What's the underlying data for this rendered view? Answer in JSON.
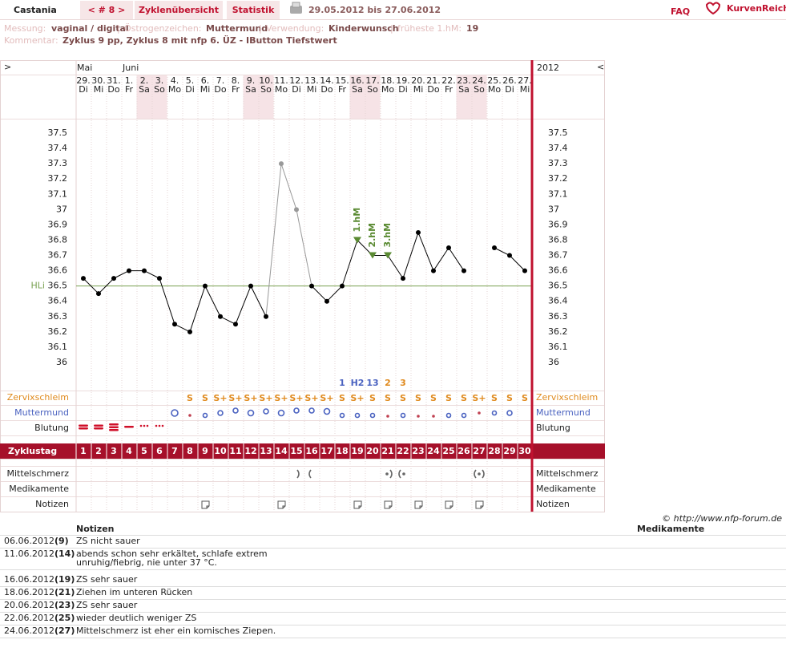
{
  "header": {
    "user": "Castania",
    "cycle_nav": "< # 8 >",
    "tabs": [
      "Zyklenübersicht",
      "Statistik"
    ],
    "date_range": "29.05.2012 bis 27.06.2012",
    "faq": "FAQ",
    "logo": "KurvenReich"
  },
  "info": {
    "separator": "|",
    "items": [
      {
        "label": "Messung:",
        "value": "vaginal / digital"
      },
      {
        "label": "Östrogenzeichen:",
        "value": "Muttermund"
      },
      {
        "label": "Verwendung:",
        "value": "Kinderwunsch"
      },
      {
        "label": "früheste 1.hM:",
        "value": "19"
      }
    ],
    "comment_label": "Kommentar:",
    "comment": "Zyklus 9 pp, Zyklus 8 mit nfp 6. ÜZ - IButton Tiefstwert"
  },
  "chart_data": {
    "type": "line",
    "nav_next": ">",
    "nav_prev": "<",
    "year": "2012",
    "month_labels": [
      "Mai",
      null,
      null,
      "Juni",
      null,
      null,
      null,
      null,
      null,
      null,
      null,
      null,
      null,
      null,
      null,
      null,
      null,
      null,
      null,
      null,
      null,
      null,
      null,
      null,
      null,
      null,
      null,
      null,
      null,
      null
    ],
    "dates": [
      "29.",
      "30.",
      "31.",
      "1.",
      "2.",
      "3.",
      "4.",
      "5.",
      "6.",
      "7.",
      "8.",
      "9.",
      "10.",
      "11.",
      "12.",
      "13.",
      "14.",
      "15.",
      "16.",
      "17.",
      "18.",
      "19.",
      "20.",
      "21.",
      "22.",
      "23.",
      "24.",
      "25.",
      "26.",
      "27."
    ],
    "weekdays": [
      "Di",
      "Mi",
      "Do",
      "Fr",
      "Sa",
      "So",
      "Mo",
      "Di",
      "Mi",
      "Do",
      "Fr",
      "Sa",
      "So",
      "Mo",
      "Di",
      "Mi",
      "Do",
      "Fr",
      "Sa",
      "So",
      "Mo",
      "Di",
      "Mi",
      "Do",
      "Fr",
      "Sa",
      "So",
      "Mo",
      "Di",
      "Mi"
    ],
    "shaded": [
      false,
      false,
      false,
      false,
      true,
      true,
      false,
      false,
      false,
      false,
      false,
      true,
      true,
      false,
      false,
      false,
      false,
      false,
      true,
      true,
      false,
      false,
      false,
      false,
      false,
      true,
      true,
      false,
      false,
      false
    ],
    "cycle_days": [
      1,
      2,
      3,
      4,
      5,
      6,
      7,
      8,
      9,
      10,
      11,
      12,
      13,
      14,
      15,
      16,
      17,
      18,
      19,
      20,
      21,
      22,
      23,
      24,
      25,
      26,
      27,
      28,
      29,
      30
    ],
    "values": [
      36.55,
      36.45,
      36.55,
      36.6,
      36.6,
      36.55,
      36.25,
      36.2,
      36.5,
      36.3,
      36.25,
      36.5,
      36.3,
      37.3,
      37.0,
      36.5,
      36.4,
      36.5,
      36.8,
      36.7,
      36.7,
      36.55,
      36.85,
      36.6,
      36.75,
      36.6,
      null,
      36.75,
      36.7,
      36.6
    ],
    "marker_colors": [
      "#000000",
      "#000000",
      "#000000",
      "#000000",
      "#000000",
      "#000000",
      "#000000",
      "#000000",
      "#000000",
      "#000000",
      "#000000",
      "#000000",
      "#000000",
      "#999999",
      "#999999",
      "#000000",
      "#000000",
      "#000000",
      "#000000",
      "#000000",
      "#000000",
      "#000000",
      "#000000",
      "#000000",
      "#000000",
      "#000000",
      "#000000",
      "#000000",
      "#000000",
      "#000000"
    ],
    "hm_labels": [
      null,
      null,
      null,
      null,
      null,
      null,
      null,
      null,
      null,
      null,
      null,
      null,
      null,
      null,
      null,
      null,
      null,
      null,
      "1.hM",
      "2.hM",
      "3.hM",
      null,
      null,
      null,
      null,
      null,
      null,
      null,
      null,
      null
    ],
    "hm_color": "#5a8a32",
    "coverline": 36.5,
    "coverline_label": "HLi",
    "coverline_color": "#78a050",
    "ylim": [
      35.9,
      37.6
    ],
    "yticks": [
      36,
      36.1,
      36.2,
      36.3,
      36.4,
      36.5,
      36.6,
      36.7,
      36.8,
      36.9,
      37,
      37.1,
      37.2,
      37.3,
      37.4,
      37.5
    ],
    "grid": false,
    "count_marks": [
      null,
      null,
      null,
      null,
      null,
      null,
      null,
      null,
      null,
      null,
      null,
      null,
      null,
      null,
      null,
      null,
      null,
      "1",
      "H2",
      "13",
      "2",
      "3",
      null,
      null,
      null,
      null,
      null,
      null,
      null,
      null
    ],
    "count_colors": [
      null,
      null,
      null,
      null,
      null,
      null,
      null,
      null,
      null,
      null,
      null,
      null,
      null,
      null,
      null,
      null,
      null,
      "#4a62c0",
      "#4a62c0",
      "#4a62c0",
      "#e08a1e",
      "#e08a1e",
      null,
      null,
      null,
      null,
      null,
      null,
      null,
      null
    ],
    "mucus": [
      null,
      null,
      null,
      null,
      null,
      null,
      null,
      "S",
      "S",
      "S+",
      "S+",
      "S+",
      "S+",
      "S+",
      "S+",
      "S+",
      "S+",
      "S",
      "S+",
      "S",
      "S",
      "S",
      "S",
      "S",
      "S",
      "S",
      "S+",
      "S",
      "S",
      "S"
    ],
    "mucus_color": "#e08a1e",
    "row_labels": {
      "zervix": "Zervixschleim",
      "muttermund": "Muttermund",
      "blutung": "Blutung",
      "zyklustag": "Zyklustag",
      "mittelschmerz": "Mittelschmerz",
      "medikamente": "Medikamente",
      "notizen": "Notizen"
    }
  },
  "copyright": "© http://www.nfp-forum.de",
  "notes": {
    "header": "Notizen",
    "header_meds": "Medikamente",
    "rows": [
      {
        "date": "06.06.2012",
        "day": "(9)",
        "lines": [
          "ZS nicht sauer"
        ]
      },
      {
        "date": "11.06.2012",
        "day": "(14)",
        "lines": [
          "abends schon sehr erkältet, schlafe extrem",
          "unruhig/fiebrig, nie unter 37 °C."
        ]
      },
      {
        "date": "16.06.2012",
        "day": "(19)",
        "lines": [
          "ZS sehr sauer"
        ]
      },
      {
        "date": "18.06.2012",
        "day": "(21)",
        "lines": [
          "Ziehen im unteren Rücken"
        ]
      },
      {
        "date": "20.06.2012",
        "day": "(23)",
        "lines": [
          "ZS sehr sauer"
        ]
      },
      {
        "date": "22.06.2012",
        "day": "(25)",
        "lines": [
          "wieder deutlich weniger ZS"
        ]
      },
      {
        "date": "24.06.2012",
        "day": "(27)",
        "lines": [
          "Mittelschmerz ist eher ein komisches Ziepen."
        ]
      }
    ]
  }
}
